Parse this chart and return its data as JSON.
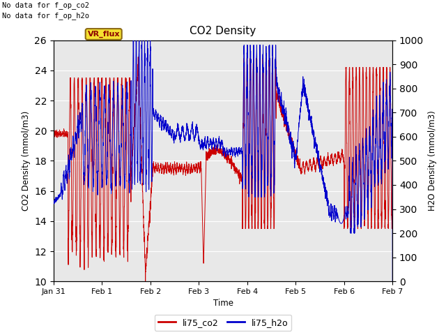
{
  "title": "CO2 Density",
  "xlabel": "Time",
  "ylabel_left": "CO2 Density (mmol/m3)",
  "ylabel_right": "H2O Density (mmol/m3)",
  "top_left_text_line1": "No data for f_op_co2",
  "top_left_text_line2": "No data for f_op_h2o",
  "vr_flux_label": "VR_flux",
  "legend_labels": [
    "li75_co2",
    "li75_h2o"
  ],
  "co2_color": "#cc0000",
  "h2o_color": "#0000cc",
  "ylim_left": [
    10,
    26
  ],
  "ylim_right": [
    0,
    1000
  ],
  "yticks_left": [
    10,
    12,
    14,
    16,
    18,
    20,
    22,
    24,
    26
  ],
  "yticks_right": [
    0,
    100,
    200,
    300,
    400,
    500,
    600,
    700,
    800,
    900,
    1000
  ],
  "plot_bg_color": "#e8e8e8",
  "grid_color": "#ffffff",
  "xtick_labels": [
    "Jan 31",
    "Feb 1",
    "Feb 2",
    "Feb 3",
    "Feb 4",
    "Feb 5",
    "Feb 6",
    "Feb 7"
  ],
  "xtick_positions": [
    0,
    1,
    2,
    3,
    4,
    5,
    6,
    7
  ],
  "xlim": [
    0,
    7
  ]
}
